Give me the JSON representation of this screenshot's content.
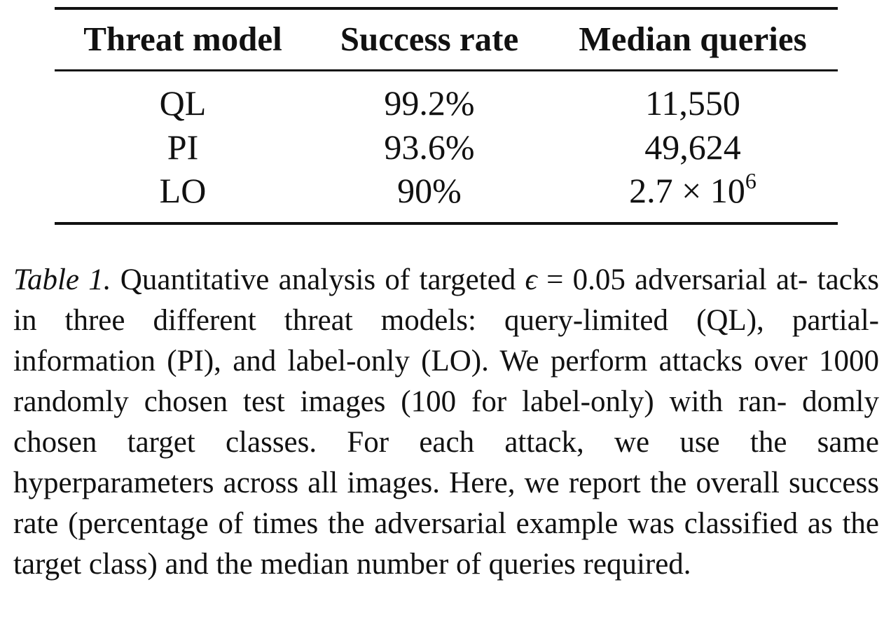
{
  "table": {
    "headers": [
      "Threat model",
      "Success rate",
      "Median queries"
    ],
    "rows": [
      {
        "threat_model": "QL",
        "success_rate": "99.2%",
        "median_queries": "11,550"
      },
      {
        "threat_model": "PI",
        "success_rate": "93.6%",
        "median_queries": "49,624"
      },
      {
        "threat_model": "LO",
        "success_rate": "90%",
        "median_queries_base": "2.7 × 10",
        "median_queries_exp": "6"
      }
    ]
  },
  "caption": {
    "label": "Table 1.",
    "before_eps": " Quantitative analysis of targeted ",
    "eps_symbol": "ϵ",
    "eps_rest": " = 0.05",
    "line1_end": " adversarial at-",
    "line2": "tacks in three different threat models: query-limited (QL), partial-",
    "line3": "information (PI), and label-only (LO). We perform attacks over",
    "line4": "1000 randomly chosen test images (100 for label-only) with ran-",
    "line5": "domly chosen target classes.  For each attack, we use the same",
    "line6": "hyperparameters across all images.  Here, we report the overall",
    "line7": "success rate (percentage of times the adversarial example was",
    "line8": "classified as the target class) and the median number of queries",
    "line9": "required."
  }
}
